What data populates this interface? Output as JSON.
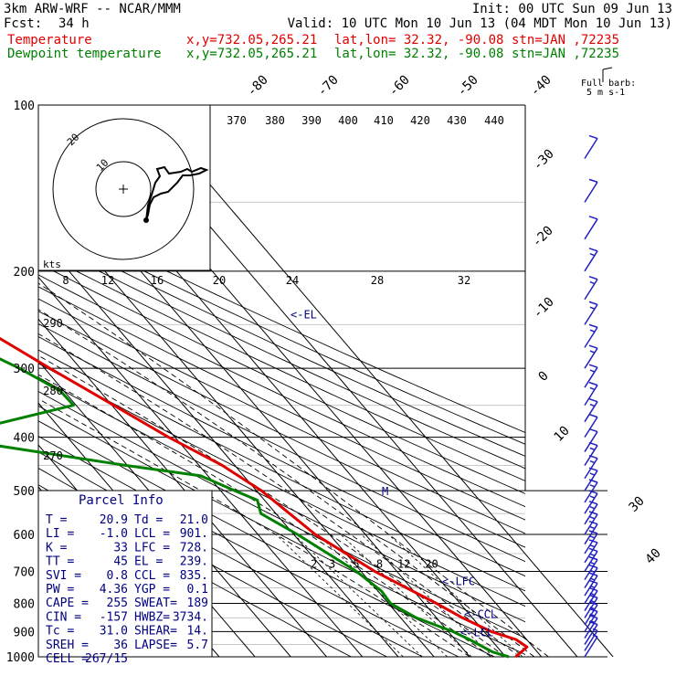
{
  "header": {
    "model": "3km ARW-WRF -- NCAR/MMM",
    "init": "Init: 00 UTC Sun 09 Jun 13",
    "fcst_label": "Fcst:",
    "fcst_value": "34 h",
    "valid": "Valid: 10 UTC Mon 10 Jun 13 (04 MDT Mon 10 Jun 13)",
    "temp_label": "Temperature",
    "dew_label": "Dewpoint temperature",
    "xy": "x,y=732.05,265.21",
    "latlon": "lat,lon= 32.32, -90.08",
    "stn": "stn=JAN ,72235"
  },
  "colors": {
    "temperature": "#e00000",
    "dewpoint": "#008000",
    "barbs": "#2020c0",
    "annot": "#000080"
  },
  "chart_data": {
    "type": "line",
    "title": "",
    "xlabel": "",
    "ylabel": "",
    "y_scale": "log-pressure",
    "ylim": [
      1000,
      100
    ],
    "x_ticks": [
      -80,
      -70,
      -60,
      -50,
      -40,
      -30,
      -20,
      -10,
      0,
      10,
      20,
      30,
      40
    ],
    "y_ticks": [
      100,
      200,
      300,
      400,
      500,
      600,
      700,
      800,
      900,
      1000
    ],
    "theta_labels": [
      "370",
      "380",
      "390",
      "400",
      "410",
      "420",
      "430",
      "440"
    ],
    "theta_low_labels": [
      "290",
      "280",
      "270"
    ],
    "mixing_ratio_labels": [
      "2",
      "3",
      "5",
      "8",
      "12",
      "20"
    ],
    "series": [
      {
        "name": "Temperature",
        "pressure": [
          1000,
          960,
          930,
          900,
          850,
          800,
          700,
          600,
          500,
          450,
          400,
          350,
          300,
          250,
          200,
          170,
          150,
          130,
          115,
          100
        ],
        "temperature_C": [
          22.8,
          28.3,
          27.0,
          22.0,
          17.3,
          13.4,
          3.8,
          -4.0,
          -8.6,
          -13.5,
          -21.8,
          -29.5,
          -38.5,
          -48.5,
          -58.6,
          -64.6,
          -66.0,
          -67.2,
          -67.8,
          -69.0
        ]
      },
      {
        "name": "Dewpoint temperature",
        "pressure": [
          1000,
          980,
          930,
          900,
          850,
          800,
          760,
          700,
          600,
          550,
          520,
          500,
          470,
          450,
          400,
          350,
          330,
          300,
          250,
          200,
          150,
          120,
          100
        ],
        "temperature_C": [
          20.9,
          17.5,
          14.0,
          11.3,
          4.4,
          0.6,
          1.0,
          -1.3,
          -9.0,
          -14.2,
          -12.0,
          -16.0,
          -22.0,
          -40.4,
          -85.0,
          -40.7,
          -41.0,
          -47.0,
          -61.9,
          -72.4,
          -80.5,
          -85.4,
          -87.7
        ]
      }
    ],
    "wind_barbs": {
      "pressure": [
        1000,
        975,
        950,
        925,
        900,
        875,
        850,
        825,
        800,
        775,
        750,
        725,
        700,
        675,
        650,
        625,
        600,
        575,
        550,
        525,
        500,
        475,
        450,
        425,
        400,
        375,
        350,
        325,
        300,
        275,
        250,
        225,
        200,
        175,
        150,
        125
      ],
      "speed_kt": [
        5,
        5,
        10,
        15,
        15,
        15,
        15,
        15,
        15,
        15,
        15,
        15,
        15,
        15,
        15,
        15,
        15,
        15,
        15,
        15,
        15,
        15,
        15,
        10,
        10,
        15,
        15,
        15,
        15,
        15,
        15,
        15,
        15,
        10,
        10,
        10
      ],
      "color": "#2020c0"
    },
    "annotations": [
      {
        "text": "<-EL",
        "pressure": 239
      },
      {
        "text": "<-LFC",
        "pressure": 728
      },
      {
        "text": "<-CCL",
        "pressure": 835
      },
      {
        "text": "<-LCL",
        "pressure": 901
      },
      {
        "text": "M",
        "pressure": 500
      }
    ],
    "full_barb_label": "Full barb:",
    "full_barb_value": "5 m s-1",
    "hodograph": {
      "ring_labels": [
        "10",
        "20"
      ],
      "speed_labels": [
        "kts",
        "8",
        "12",
        "16",
        "20",
        "24",
        "28",
        "32"
      ]
    }
  },
  "parcel_info": {
    "title": "Parcel Info",
    "rows": [
      [
        "T  =",
        "20.9",
        "Td =",
        "21.0"
      ],
      [
        "LI =",
        "-1.0",
        "LCL =",
        "901."
      ],
      [
        "K  =",
        "33",
        "LFC =",
        "728."
      ],
      [
        "TT =",
        "45",
        "EL  =",
        "239."
      ],
      [
        "SVI =",
        "0.8",
        "CCL =",
        "835."
      ],
      [
        "PW =",
        "4.36",
        "YGP =",
        "0.1"
      ],
      [
        "CAPE =",
        "255",
        "SWEAT=",
        "189"
      ],
      [
        "CIN =",
        "-157",
        "HWBZ=",
        "3734."
      ],
      [
        "Tc =",
        "31.0",
        "SHEAR=",
        "14."
      ],
      [
        "SREH =",
        "36",
        "LAPSE=",
        "5.7"
      ],
      [
        "CELL =",
        "267/15",
        "",
        ""
      ]
    ]
  }
}
